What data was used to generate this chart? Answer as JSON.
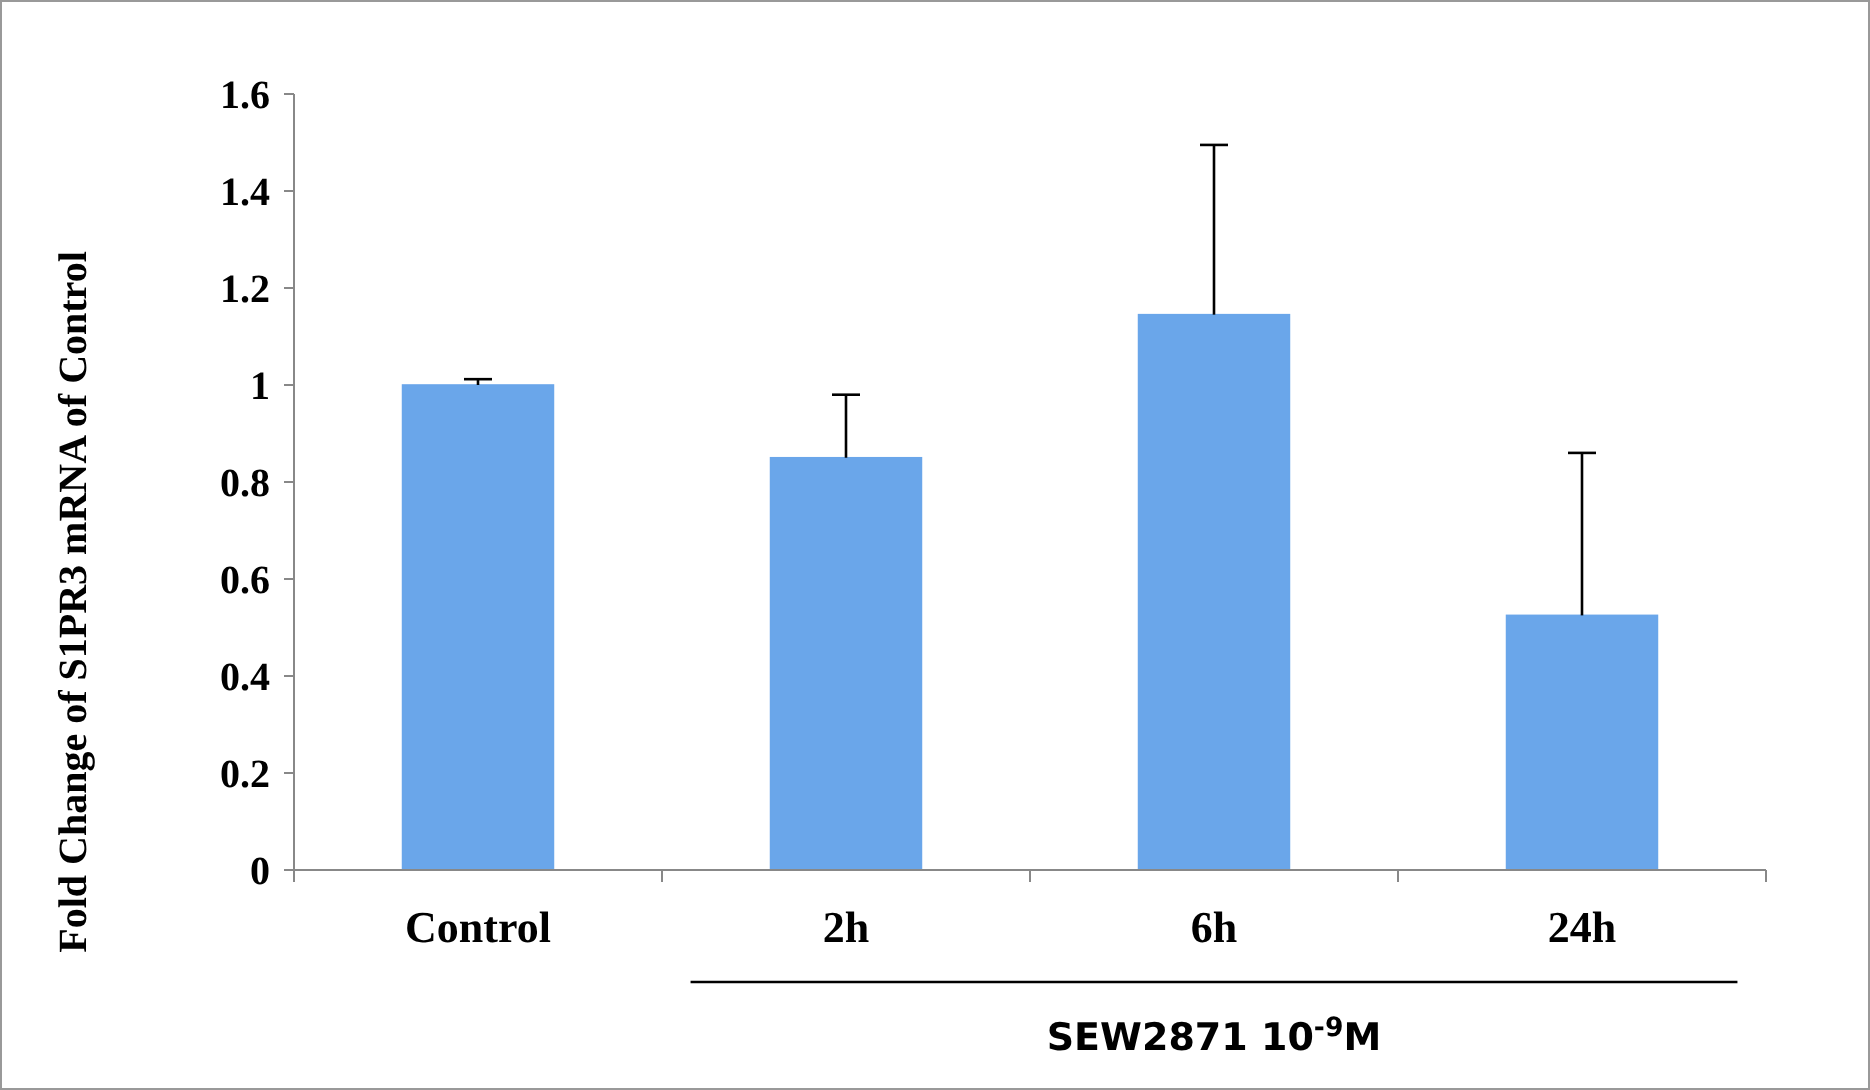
{
  "chart_data": {
    "type": "bar",
    "ylabel": "Fold Change of S1PR3 mRNA of Control",
    "categories": [
      "Control",
      "2h",
      "6h",
      "24h"
    ],
    "values": [
      1.0,
      0.85,
      1.145,
      0.525
    ],
    "errors": [
      [
        1.0,
        1.012
      ],
      [
        0.85,
        0.98
      ],
      [
        1.145,
        1.495
      ],
      [
        0.525,
        0.86
      ]
    ],
    "color": "#6aa6ea",
    "ylim": [
      0,
      1.6
    ],
    "yticks": [
      0,
      0.2,
      0.4,
      0.6,
      0.8,
      1,
      1.2,
      1.4,
      1.6
    ],
    "annotations": [
      "SEW2871 10$^{-9}$M"
    ]
  }
}
